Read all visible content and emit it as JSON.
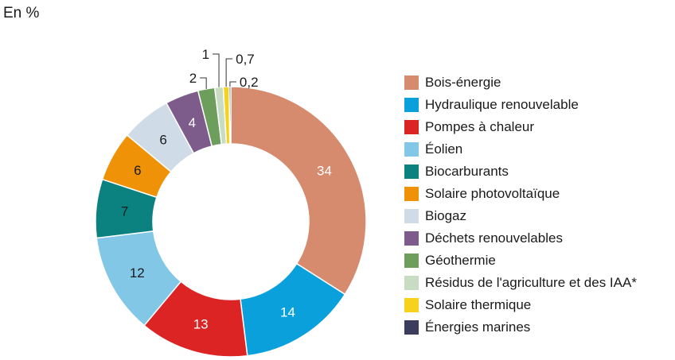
{
  "chart_data": {
    "type": "pie",
    "unit_label": "En %",
    "slices": [
      {
        "name": "Bois-énergie",
        "value": 34,
        "label": "34",
        "color": "#d68a6e"
      },
      {
        "name": "Hydraulique renouvelable",
        "value": 14,
        "label": "14",
        "color": "#0aa0dc"
      },
      {
        "name": "Pompes à chaleur",
        "value": 13,
        "label": "13",
        "color": "#dc2424"
      },
      {
        "name": "Éolien",
        "value": 12,
        "label": "12",
        "color": "#82c8e6"
      },
      {
        "name": "Biocarburants",
        "value": 7,
        "label": "7",
        "color": "#0c8280"
      },
      {
        "name": "Solaire photovoltaïque",
        "value": 6,
        "label": "6",
        "color": "#ef9208"
      },
      {
        "name": "Biogaz",
        "value": 6,
        "label": "6",
        "color": "#cfdbe6"
      },
      {
        "name": "Déchets renouvelables",
        "value": 4,
        "label": "4",
        "color": "#7d5c8c"
      },
      {
        "name": "Géothermie",
        "value": 2,
        "label": "2",
        "color": "#6e9e5c"
      },
      {
        "name": "Résidus de l'agriculture et des IAA*",
        "value": 1,
        "label": "1",
        "color": "#c8dcc4"
      },
      {
        "name": "Solaire thermique",
        "value": 0.7,
        "label": "0,7",
        "color": "#f7d21c"
      },
      {
        "name": "Énergies marines",
        "value": 0.2,
        "label": "0,2",
        "color": "#3c3c5c"
      }
    ],
    "legend_position": "right"
  }
}
